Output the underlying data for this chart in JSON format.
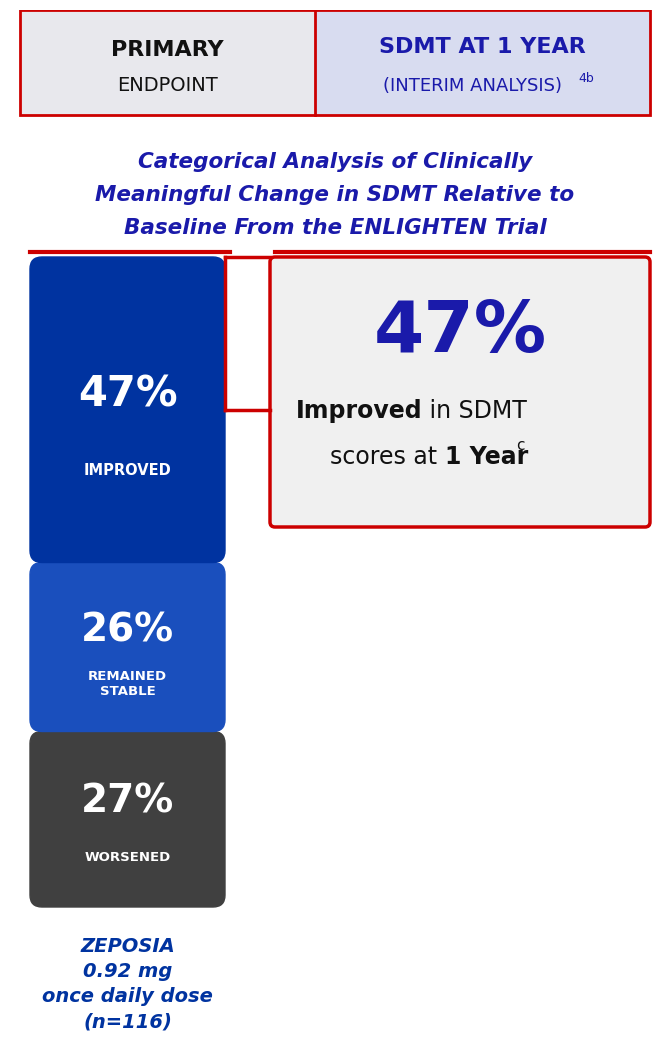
{
  "bg_color": "#ffffff",
  "header_left_bg": "#e8e8ed",
  "header_right_bg": "#d8dcf0",
  "header_left_text1": "PRIMARY",
  "header_left_text2": "ENDPOINT",
  "header_right_text1": "SDMT AT 1 YEAR",
  "header_right_text2": "(INTERIM ANALYSIS)",
  "header_right_superscript": "4b",
  "title_line1": "Categorical Analysis of Clinically",
  "title_line2": "Meaningful Change in SDMT Relative to",
  "title_line3": "Baseline From the ENLIGHTEN Trial",
  "title_color": "#1a1aaa",
  "bar_improved_pct": "47%",
  "bar_improved_label": "IMPROVED",
  "bar_improved_color": "#0033a0",
  "bar_stable_pct": "26%",
  "bar_stable_label": "REMAINED\nSTABLE",
  "bar_stable_color": "#1a4fbd",
  "bar_worsened_pct": "27%",
  "bar_worsened_label": "WORSENED",
  "bar_worsened_color": "#404040",
  "callout_pct": "47%",
  "callout_line1_bold": "Improved",
  "callout_line1_rest": " in SDMT",
  "callout_line2": "scores at ",
  "callout_line2_bold": "1 Year",
  "callout_line2_super": "c",
  "callout_bg": "#f0f0f0",
  "callout_border_color": "#cc0000",
  "zeposia_label": "ZEPOSIA\n0.92 mg\nonce daily dose\n(n=116)",
  "zeposia_color": "#0033a0",
  "header_border_color": "#cc0000"
}
